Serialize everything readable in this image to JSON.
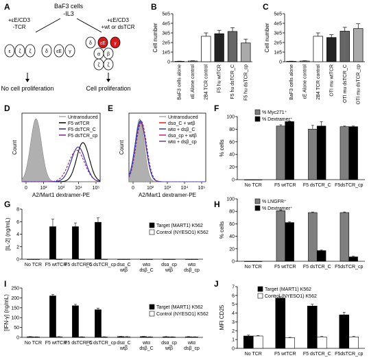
{
  "figure": {
    "panel_letters": [
      "A",
      "B",
      "C",
      "D",
      "E",
      "F",
      "G",
      "H",
      "I",
      "J"
    ]
  },
  "panel_a": {
    "top_lines": [
      "BaF3 cells",
      "-IL3"
    ],
    "left_lines": [
      "+εE/CD3",
      "-TCR"
    ],
    "right_lines": [
      "+εE/CD3",
      "+wt or dsTCR"
    ],
    "left_result": "No cell proliferation",
    "right_result": "Cell proliferation",
    "left_subunits": [
      "ε",
      "ζ",
      "ζ",
      "δ",
      "εE",
      "γ"
    ],
    "right_subunits": [
      "δ",
      "εE",
      "γ",
      "α",
      "β",
      "ζ",
      "ζ"
    ],
    "accent_red": "#d7191c",
    "accent_black": "#1a1a1a"
  },
  "chart_data": [
    {
      "panel": "B",
      "type": "bar",
      "ylabel": "Cell number",
      "ylim": [
        0,
        500000
      ],
      "yticks": [
        "0",
        "1e5",
        "2e5",
        "3e5",
        "4e5",
        "5e5"
      ],
      "categories": [
        "BaF3 cells alone",
        "εE Alone control",
        "2B4 TCR control",
        "F5 hu wtTCR",
        "F5 hu dsTCR_C",
        "F5 hu dsTCR_cp"
      ],
      "values": [
        4000,
        7000,
        265000,
        292000,
        315000,
        195000
      ],
      "errors": [
        2000,
        3000,
        35000,
        35000,
        40000,
        40000
      ],
      "colors": [
        "#ffffff",
        "#ffffff",
        "#ffffff",
        "#222222",
        "#666666",
        "#aaaaaa"
      ]
    },
    {
      "panel": "C",
      "type": "bar",
      "ylabel": "Cell number",
      "ylim": [
        0,
        500000
      ],
      "yticks": [
        "0",
        "1e5",
        "2e5",
        "3e5",
        "4e5",
        "5e5"
      ],
      "categories": [
        "BaF3 cells alone",
        "εE Alone control",
        "2B4 TCR control",
        "OTI mu wtTCR",
        "OTI mu dsTCR_C",
        "OTI mu dsTCR_cp"
      ],
      "values": [
        4000,
        7000,
        265000,
        252000,
        318000,
        345000
      ],
      "errors": [
        2000,
        3000,
        35000,
        30000,
        40000,
        50000
      ],
      "colors": [
        "#ffffff",
        "#ffffff",
        "#ffffff",
        "#222222",
        "#666666",
        "#aaaaaa"
      ]
    },
    {
      "panel": "D",
      "type": "line",
      "xlabel": "A2/Mart1 dextramer-PE",
      "ylabel": "Count",
      "xticks": [
        "0",
        "10²",
        "10³",
        "10⁴",
        "10⁵"
      ],
      "series": [
        {
          "name": "Untransduced",
          "color": "#aaaaaa"
        },
        {
          "name": "F5 wtTCR",
          "color": "#000000"
        },
        {
          "name": "F5 dsTCR_C",
          "color": "#2222aa"
        },
        {
          "name": "F5 dsTCR_cp",
          "color": "#8b1a8b"
        }
      ]
    },
    {
      "panel": "E",
      "type": "line",
      "xlabel": "A2/Mart1 dextramer-PE",
      "ylabel": "Count",
      "xticks": [
        "0",
        "10²",
        "10³",
        "10⁴",
        "10⁵"
      ],
      "series": [
        {
          "name": "Untransduced",
          "color": "#aaaaaa"
        },
        {
          "name": "dsα_C + wtβ",
          "color": "#e31a1c"
        },
        {
          "name": "wtα + dsβ_C",
          "color": "#1f3fbf"
        },
        {
          "name": "dsα_cp + wtβ",
          "color": "#c51b7d"
        },
        {
          "name": "wtα + dsβ_cp",
          "color": "#6a3d9a"
        }
      ]
    },
    {
      "panel": "F",
      "type": "bar",
      "ylabel": "% cells",
      "ylim": [
        0,
        100
      ],
      "yticks": [
        "0",
        "20",
        "40",
        "60",
        "80",
        "100"
      ],
      "categories": [
        "No TCR",
        "F5 wtTCR",
        "F5 dsTCR_C",
        "F5dsTCR_cp"
      ],
      "series": [
        {
          "name": "% Myc271⁺",
          "color": "#7f7f7f",
          "values": [
            0,
            85,
            80,
            84
          ],
          "errors": [
            0,
            2,
            6,
            1
          ]
        },
        {
          "name": "% Dextramer⁺",
          "color": "#000000",
          "values": [
            0,
            92,
            85,
            84
          ],
          "errors": [
            0,
            1,
            7,
            1
          ]
        }
      ]
    },
    {
      "panel": "G",
      "type": "bar",
      "ylabel": "[IL-2] (ng/mL)",
      "ylim": [
        0,
        8
      ],
      "yticks": [
        "0",
        "2",
        "4",
        "6",
        "8"
      ],
      "categories": [
        "No TCR",
        "F5 wtTCR",
        "F5 dsTCR_C",
        "F5 dsTCR_cp",
        "dsα_C wtβ",
        "wtα dsβ_C",
        "dsα_cp wtβ",
        "wtα dsβ_cp"
      ],
      "series": [
        {
          "name": "Target (MART1) K562",
          "color": "#000000",
          "values": [
            0,
            5.2,
            5.2,
            5.9,
            0,
            0,
            0,
            0
          ],
          "errors": [
            0,
            1.2,
            0.6,
            0.7,
            0,
            0,
            0,
            0
          ]
        },
        {
          "name": "Control (NYESO1) K562",
          "color": "#ffffff",
          "values": [
            0,
            0,
            0,
            0,
            0,
            0,
            0,
            0
          ],
          "errors": [
            0,
            0,
            0,
            0,
            0,
            0,
            0,
            0
          ]
        }
      ]
    },
    {
      "panel": "H",
      "type": "bar",
      "ylabel": "% cells",
      "ylim": [
        0,
        100
      ],
      "yticks": [
        "0",
        "20",
        "40",
        "60",
        "80",
        "100"
      ],
      "categories": [
        "No TCR",
        "F5 wtTCR",
        "F5 dsTCR_C",
        "F5dsTCR_cp"
      ],
      "series": [
        {
          "name": "% LNGFR⁺",
          "color": "#7f7f7f",
          "values": [
            0,
            81,
            78,
            78
          ],
          "errors": [
            0,
            1,
            1,
            1
          ]
        },
        {
          "name": "% Dextramer⁺",
          "color": "#000000",
          "values": [
            0,
            62,
            17,
            7
          ],
          "errors": [
            0,
            1,
            1,
            1
          ]
        }
      ]
    },
    {
      "panel": "I",
      "type": "bar",
      "ylabel": "[IFN-γ] (ng/mL)",
      "ylim": [
        0,
        250
      ],
      "yticks": [
        "0",
        "50",
        "100",
        "150",
        "200",
        "250"
      ],
      "categories": [
        "No TCR",
        "F5 wtTCR",
        "F5 dsTCR_C",
        "F5 dsTCR_cp",
        "dsα_C wtβ",
        "wtα dsβ_C",
        "dsα_cp wtβ",
        "wtα dsβ_cp"
      ],
      "series": [
        {
          "name": "Target (MART1) K562",
          "color": "#000000",
          "values": [
            3,
            210,
            160,
            140,
            4,
            4,
            3,
            3
          ],
          "errors": [
            1,
            8,
            7,
            8,
            1,
            1,
            1,
            1
          ]
        },
        {
          "name": "Control (NYESO1) K562",
          "color": "#ffffff",
          "values": [
            2,
            3,
            2,
            2,
            3,
            2,
            2,
            2
          ],
          "errors": [
            1,
            1,
            1,
            1,
            1,
            1,
            1,
            1
          ]
        }
      ]
    },
    {
      "panel": "J",
      "type": "bar",
      "ylabel": "MFI CD25",
      "ylim": [
        0,
        7
      ],
      "yticks": [
        "0",
        "1",
        "2",
        "3",
        "4",
        "5",
        "6",
        "7"
      ],
      "categories": [
        "No TCR",
        "F5 wtTCR",
        "F5 dsTCR_C",
        "F5dsTCR_cp"
      ],
      "series": [
        {
          "name": "Target (MART1) K562",
          "color": "#000000",
          "values": [
            1.4,
            5.7,
            4.8,
            3.8
          ],
          "errors": [
            0.1,
            0.15,
            0.2,
            0.3
          ]
        },
        {
          "name": "Control (NYESO1) K562",
          "color": "#ffffff",
          "values": [
            1.4,
            1.2,
            1.3,
            1.3
          ],
          "errors": [
            0.05,
            0.05,
            0.05,
            0.05
          ]
        }
      ]
    }
  ]
}
